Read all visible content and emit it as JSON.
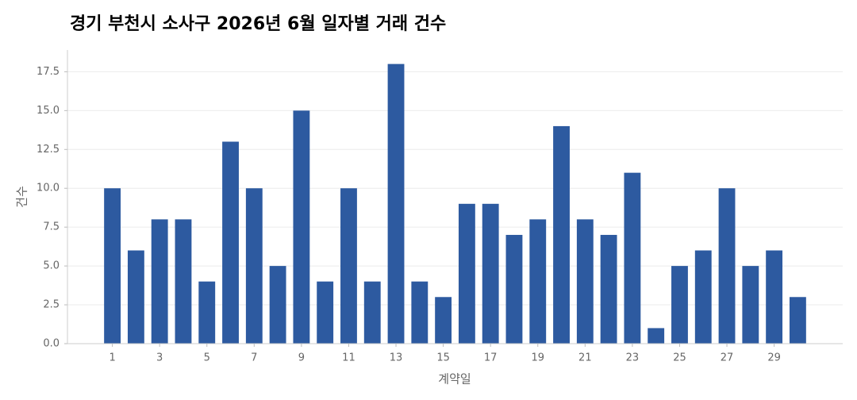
{
  "chart_data": {
    "type": "bar",
    "title": "경기 부천시 소사구 2026년 6월 일자별 거래 건수",
    "x_label": "계약일",
    "y_label": "건수",
    "x": [
      1,
      2,
      3,
      4,
      5,
      6,
      7,
      8,
      9,
      10,
      11,
      12,
      13,
      14,
      15,
      16,
      17,
      18,
      19,
      20,
      21,
      22,
      23,
      24,
      25,
      26,
      27,
      28,
      29,
      30
    ],
    "values": [
      10,
      6,
      8,
      8,
      4,
      13,
      10,
      5,
      15,
      4,
      10,
      4,
      18,
      4,
      3,
      9,
      9,
      7,
      8,
      14,
      8,
      7,
      11,
      1,
      5,
      6,
      10,
      5,
      6,
      3
    ],
    "color": "#2d5aa0",
    "xlim": [
      -0.9,
      31.9
    ],
    "xticks": [
      1,
      3,
      5,
      7,
      9,
      11,
      13,
      15,
      17,
      19,
      21,
      23,
      25,
      27,
      29
    ],
    "ylim": [
      0,
      18.9
    ],
    "yticks": [
      {
        "value": 0,
        "label": "0.0"
      },
      2.5,
      {
        "value": 5,
        "label": "5.0"
      },
      7.5,
      {
        "value": 10,
        "label": "10.0"
      },
      12.5,
      {
        "value": 15,
        "label": "15.0"
      },
      17.5
    ],
    "grid": true
  }
}
